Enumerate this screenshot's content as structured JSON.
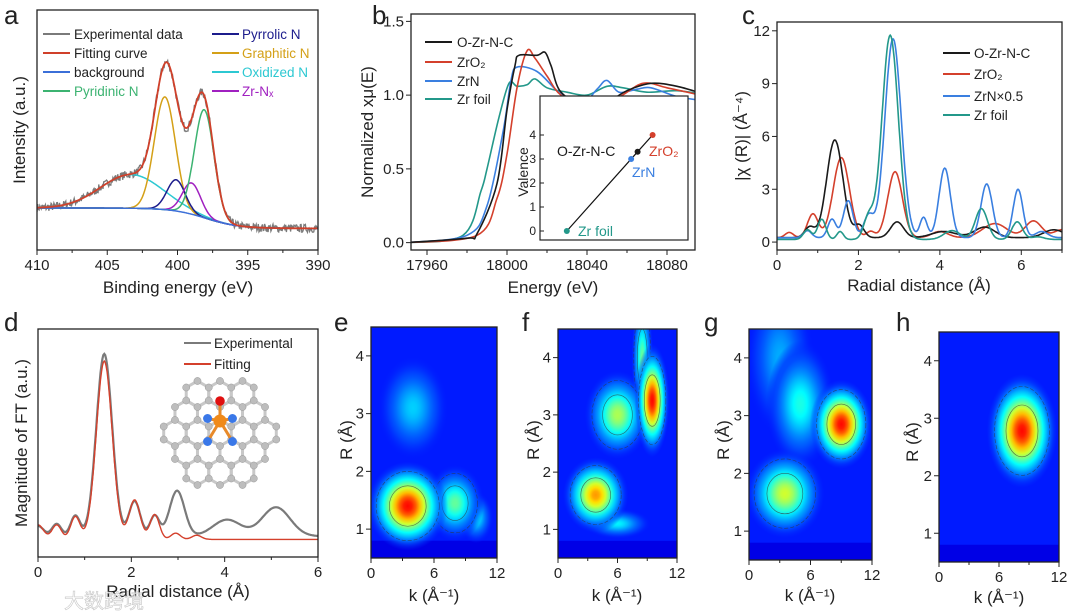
{
  "figure": {
    "panel_labels": [
      "a",
      "b",
      "c",
      "d",
      "e",
      "f",
      "g",
      "h"
    ],
    "watermark": "大数跨境"
  },
  "chart_data": [
    {
      "type": "line",
      "panel": "a",
      "xlabel": "Binding energy (eV)",
      "ylabel": "Intensity (a.u.)",
      "xlim": [
        410,
        390
      ],
      "ylim": [
        0,
        1
      ],
      "xticks": [
        "410",
        "405",
        "400",
        "395",
        "390"
      ],
      "legend_position": "top",
      "series": [
        {
          "name": "Experimental data",
          "color": "#7a7a7a",
          "kind": "experimental"
        },
        {
          "name": "Fitting curve",
          "color": "#d0402a",
          "kind": "fit"
        },
        {
          "name": "background",
          "color": "#3b6fd8",
          "kind": "background",
          "high": 0.175,
          "low": 0.09,
          "center": 398,
          "width": 1.2
        },
        {
          "name": "Pyridinic N",
          "color": "#3cb371",
          "kind": "component",
          "center": 398.1,
          "height": 0.45,
          "sigma": 0.7
        },
        {
          "name": "Pyrrolic N",
          "color": "#1c1c8c",
          "kind": "component",
          "center": 400.1,
          "height": 0.13,
          "sigma": 0.65
        },
        {
          "name": "Graphitic N",
          "color": "#d4a017",
          "kind": "component",
          "center": 400.9,
          "height": 0.47,
          "sigma": 0.75
        },
        {
          "name": "Oxidized N",
          "color": "#2cc8d2",
          "kind": "component",
          "center": 403.3,
          "height": 0.14,
          "sigma": 2.2
        },
        {
          "name": "Zr-Nₓ",
          "color": "#a020c0",
          "kind": "component",
          "center": 399.0,
          "height": 0.13,
          "sigma": 0.65
        }
      ]
    },
    {
      "type": "line",
      "panel": "b",
      "xlabel": "Energy (eV)",
      "ylabel": "Normalized xμ(E)",
      "xlim": [
        17952,
        18094
      ],
      "ylim": [
        -0.05,
        1.55
      ],
      "xticks": [
        "17960",
        "18000",
        "18040",
        "18080"
      ],
      "yticks": [
        "0.0",
        "0.5",
        "1.0",
        "1.5"
      ],
      "legend_position": "top-left",
      "series": [
        {
          "name": "O-Zr-N-C",
          "color": "#1a1a1a",
          "x": [
            17950,
            17980,
            17985,
            17995,
            18000,
            18004,
            18006,
            18015,
            18019,
            18022,
            18027,
            18040,
            18050,
            18060,
            18072,
            18085,
            18100
          ],
          "y": [
            0,
            0.03,
            0.06,
            0.4,
            0.9,
            1.2,
            1.27,
            1.27,
            1.29,
            1.2,
            1.02,
            0.92,
            0.95,
            1.03,
            1.08,
            1.06,
            1.0
          ]
        },
        {
          "name": "ZrO₂",
          "color": "#d4402c",
          "x": [
            17950,
            17985,
            17995,
            18000,
            18005,
            18010,
            18014,
            18020,
            18027,
            18040,
            18055,
            18068,
            18080,
            18100
          ],
          "y": [
            0,
            0.05,
            0.3,
            0.6,
            1.05,
            1.3,
            1.25,
            1.13,
            1.0,
            0.92,
            0.98,
            1.08,
            1.05,
            0.99
          ]
        },
        {
          "name": "ZrN",
          "color": "#3a7fe0",
          "x": [
            17950,
            17980,
            17990,
            17998,
            18002,
            18005,
            18015,
            18025,
            18036,
            18045,
            18050,
            18056,
            18065,
            18072,
            18085,
            18100
          ],
          "y": [
            0,
            0.05,
            0.25,
            0.75,
            1.1,
            1.19,
            1.16,
            1.03,
            0.92,
            1.04,
            1.1,
            1.02,
            1.04,
            1.05,
            0.99,
            0.96
          ]
        },
        {
          "name": "Zr foil",
          "color": "#23988a",
          "x": [
            17950,
            17978,
            17987,
            17990,
            17996,
            18001,
            18005,
            18010,
            18014,
            18020,
            18030,
            18040,
            18050,
            18058,
            18070,
            18085,
            18100
          ],
          "y": [
            0,
            0.05,
            0.35,
            0.5,
            0.85,
            1.08,
            1.06,
            1.07,
            1.11,
            1.05,
            1.02,
            1.0,
            1.06,
            1.05,
            1.02,
            1.03,
            1.0
          ]
        }
      ],
      "inset": {
        "type": "scatter",
        "ylabel": "Valence",
        "ylim": [
          -0.375,
          5.625
        ],
        "yticks": [
          "0",
          "1",
          "2",
          "3",
          "4"
        ],
        "points": [
          {
            "name": "Zr foil",
            "valence": 0,
            "color": "#23988a"
          },
          {
            "name": "ZrN",
            "valence": 3,
            "color": "#3a7fe0"
          },
          {
            "name": "O-Zr-N-C",
            "valence": 3.3,
            "color": "#1a1a1a"
          },
          {
            "name": "ZrO₂",
            "valence": 4,
            "color": "#d4402c"
          }
        ]
      }
    },
    {
      "type": "line",
      "panel": "c",
      "xlabel": "Radial distance (Å)",
      "ylabel": "|χ (R)| (Å⁻⁴)",
      "xlim": [
        0,
        7
      ],
      "ylim": [
        -0.45,
        12.5
      ],
      "xticks": [
        "0",
        "2",
        "4",
        "6"
      ],
      "yticks": [
        "0",
        "3",
        "6",
        "9",
        "12"
      ],
      "legend_position": "top-right",
      "series": [
        {
          "name": "O-Zr-N-C",
          "color": "#1a1a1a",
          "baseline": 0.25,
          "peaks": [
            [
              0.8,
              0.6,
              0.12
            ],
            [
              1.42,
              5.55,
              0.2
            ],
            [
              2.02,
              0.7,
              0.12
            ],
            [
              2.95,
              0.9,
              0.16
            ],
            [
              4.1,
              0.35,
              0.3
            ],
            [
              5.1,
              0.6,
              0.25
            ],
            [
              6.8,
              0.45,
              0.25
            ]
          ]
        },
        {
          "name": "ZrO₂",
          "color": "#d4402c",
          "baseline": 0.25,
          "peaks": [
            [
              0.3,
              0.3,
              0.1
            ],
            [
              0.88,
              1.35,
              0.13
            ],
            [
              1.58,
              4.55,
              0.2
            ],
            [
              2.3,
              0.35,
              0.1
            ],
            [
              2.9,
              3.75,
              0.18
            ],
            [
              4.0,
              0.35,
              0.2
            ],
            [
              5.35,
              0.8,
              0.3
            ],
            [
              6.3,
              0.95,
              0.2
            ],
            [
              7.0,
              0.45,
              0.2
            ]
          ]
        },
        {
          "name": "ZrN×0.5",
          "color": "#3a7fe0",
          "baseline": 0.25,
          "peaks": [
            [
              0.75,
              0.4,
              0.1
            ],
            [
              1.35,
              1.05,
              0.1
            ],
            [
              1.75,
              2.1,
              0.12
            ],
            [
              2.25,
              1.25,
              0.12
            ],
            [
              2.85,
              11.3,
              0.2
            ],
            [
              3.6,
              1.15,
              0.09
            ],
            [
              4.12,
              3.95,
              0.14
            ],
            [
              5.15,
              3.05,
              0.14
            ],
            [
              5.92,
              2.75,
              0.12
            ],
            [
              6.5,
              0.35,
              0.15
            ]
          ]
        },
        {
          "name": "Zr foil",
          "color": "#23988a",
          "baseline": 0.15,
          "peaks": [
            [
              0.75,
              0.55,
              0.1
            ],
            [
              1.1,
              1.15,
              0.1
            ],
            [
              1.55,
              0.45,
              0.08
            ],
            [
              2.25,
              1.25,
              0.12
            ],
            [
              2.78,
              11.6,
              0.2
            ],
            [
              4.3,
              0.5,
              0.2
            ],
            [
              5.02,
              1.75,
              0.15
            ],
            [
              5.9,
              1.0,
              0.13
            ],
            [
              6.4,
              0.15,
              0.15
            ]
          ]
        }
      ]
    },
    {
      "type": "line",
      "panel": "d",
      "xlabel": "Radial distance (Å)",
      "ylabel": "Magnitude of FT (a.u.)",
      "xlim": [
        0,
        6
      ],
      "ylim": [
        0,
        1.1
      ],
      "xticks": [
        "0",
        "2",
        "4",
        "6"
      ],
      "legend_position": "top-right",
      "series": [
        {
          "name": "Experimental",
          "color": "#7a7a7a",
          "baseline": 0.1,
          "peaks": [
            [
              0.0,
              0.05,
              0.12
            ],
            [
              0.4,
              0.06,
              0.1
            ],
            [
              0.8,
              0.1,
              0.1
            ],
            [
              1.42,
              0.88,
              0.17
            ],
            [
              2.07,
              0.17,
              0.12
            ],
            [
              2.5,
              0.1,
              0.1
            ],
            [
              2.98,
              0.22,
              0.16
            ],
            [
              4.05,
              0.08,
              0.3
            ],
            [
              5.1,
              0.14,
              0.3
            ]
          ]
        },
        {
          "name": "Fitting",
          "color": "#d4402c",
          "baseline": 0.085,
          "peaks": [
            [
              0.0,
              0.07,
              0.12
            ],
            [
              0.4,
              0.07,
              0.1
            ],
            [
              0.8,
              0.11,
              0.1
            ],
            [
              1.42,
              0.86,
              0.17
            ],
            [
              2.07,
              0.19,
              0.12
            ],
            [
              2.5,
              0.12,
              0.1
            ],
            [
              2.95,
              0.03,
              0.1
            ],
            [
              3.4,
              0.02,
              0.1
            ]
          ]
        }
      ]
    },
    {
      "type": "heatmap",
      "panel": "e",
      "xlabel": "k (Å⁻¹)",
      "ylabel": "R (Å)",
      "xlim": [
        0,
        12
      ],
      "ylim": [
        0.5,
        4.5
      ],
      "xticks": [
        "0",
        "6",
        "12"
      ],
      "yticks": [
        "1",
        "2",
        "3",
        "4"
      ],
      "blobs": [
        [
          4,
          3.1,
          3,
          0.4,
          0.25
        ],
        [
          10,
          1.2,
          1.5,
          0.2,
          0.3
        ],
        [
          8,
          1.45,
          2.5,
          0.3,
          0.45
        ],
        [
          3.5,
          1.4,
          3.5,
          0.35,
          1.0
        ]
      ]
    },
    {
      "type": "heatmap",
      "panel": "f",
      "xlabel": "k (Å⁻¹)",
      "ylabel": "R (Å)",
      "xlim": [
        0,
        12
      ],
      "ylim": [
        0.5,
        4.5
      ],
      "xticks": [
        "0",
        "6",
        "12"
      ],
      "yticks": [
        "1",
        "2",
        "3",
        "4"
      ],
      "blobs": [
        [
          6,
          1.1,
          3,
          0.12,
          0.3
        ],
        [
          8.5,
          4.0,
          1,
          0.5,
          0.45
        ],
        [
          6,
          3.0,
          3,
          0.35,
          0.55
        ],
        [
          3.8,
          1.6,
          3,
          0.3,
          0.8
        ],
        [
          9.5,
          3.25,
          1.6,
          0.45,
          1.0
        ]
      ]
    },
    {
      "type": "heatmap",
      "panel": "g",
      "xlabel": "k (Å⁻¹)",
      "ylabel": "R (Å)",
      "xlim": [
        0,
        12
      ],
      "ylim": [
        0.5,
        4.5
      ],
      "xticks": [
        "0",
        "6",
        "12"
      ],
      "yticks": [
        "1",
        "2",
        "3",
        "4"
      ],
      "blobs": [
        [
          3,
          4,
          3,
          0.6,
          0.2
        ],
        [
          5,
          3.2,
          3,
          0.5,
          0.35
        ],
        [
          3.5,
          1.65,
          3.5,
          0.35,
          0.6
        ],
        [
          9,
          2.85,
          2.8,
          0.35,
          1.0
        ]
      ]
    },
    {
      "type": "heatmap",
      "panel": "h",
      "xlabel": "k (Å⁻¹)",
      "ylabel": "R (Å)",
      "xlim": [
        0,
        12
      ],
      "ylim": [
        0.5,
        4.5
      ],
      "xticks": [
        "0",
        "6",
        "12"
      ],
      "yticks": [
        "1",
        "2",
        "3",
        "4"
      ],
      "blobs": [
        [
          8.3,
          2.78,
          3.2,
          0.45,
          1.0
        ]
      ]
    }
  ]
}
